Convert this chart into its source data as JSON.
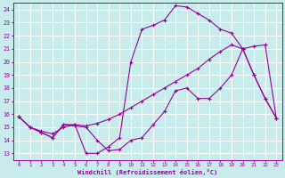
{
  "xlabel": "Windchill (Refroidissement éolien,°C)",
  "xlim": [
    -0.5,
    23.5
  ],
  "ylim": [
    12.5,
    24.5
  ],
  "xticks": [
    0,
    1,
    2,
    3,
    4,
    5,
    6,
    7,
    8,
    9,
    10,
    11,
    12,
    13,
    14,
    15,
    16,
    17,
    18,
    19,
    20,
    21,
    22,
    23
  ],
  "yticks": [
    13,
    14,
    15,
    16,
    17,
    18,
    19,
    20,
    21,
    22,
    23,
    24
  ],
  "bg_color": "#c8ecec",
  "grid_color": "#ffffff",
  "line_color": "#990099",
  "line1_x": [
    0,
    1,
    2,
    3,
    4,
    5,
    6,
    7,
    8,
    9,
    10,
    11,
    12,
    13,
    14,
    15,
    16,
    17,
    18,
    19,
    20,
    21,
    22,
    23
  ],
  "line1_y": [
    15.8,
    15.0,
    14.6,
    14.2,
    15.2,
    15.2,
    13.0,
    13.0,
    13.5,
    14.2,
    20.0,
    22.5,
    22.8,
    23.2,
    24.3,
    24.2,
    23.7,
    23.2,
    22.5,
    22.2,
    21.0,
    19.0,
    17.2,
    15.7
  ],
  "line2_x": [
    0,
    1,
    2,
    3,
    4,
    5,
    6,
    7,
    8,
    9,
    10,
    11,
    12,
    13,
    14,
    15,
    16,
    17,
    18,
    19,
    20,
    21,
    22,
    23
  ],
  "line2_y": [
    15.8,
    15.0,
    14.7,
    14.5,
    15.0,
    15.2,
    15.1,
    15.3,
    15.6,
    16.0,
    16.5,
    17.0,
    17.5,
    18.0,
    18.5,
    19.0,
    19.5,
    20.2,
    20.8,
    21.3,
    21.0,
    21.2,
    21.3,
    15.7
  ],
  "line3_x": [
    0,
    1,
    2,
    3,
    4,
    5,
    6,
    7,
    8,
    9,
    10,
    11,
    12,
    13,
    14,
    15,
    16,
    17,
    18,
    19,
    20,
    21,
    22,
    23
  ],
  "line3_y": [
    15.8,
    15.0,
    14.6,
    14.2,
    15.2,
    15.1,
    15.0,
    14.0,
    13.2,
    13.3,
    14.0,
    14.2,
    15.2,
    16.2,
    17.8,
    18.0,
    17.2,
    17.2,
    18.0,
    19.0,
    21.0,
    19.0,
    17.2,
    15.7
  ]
}
